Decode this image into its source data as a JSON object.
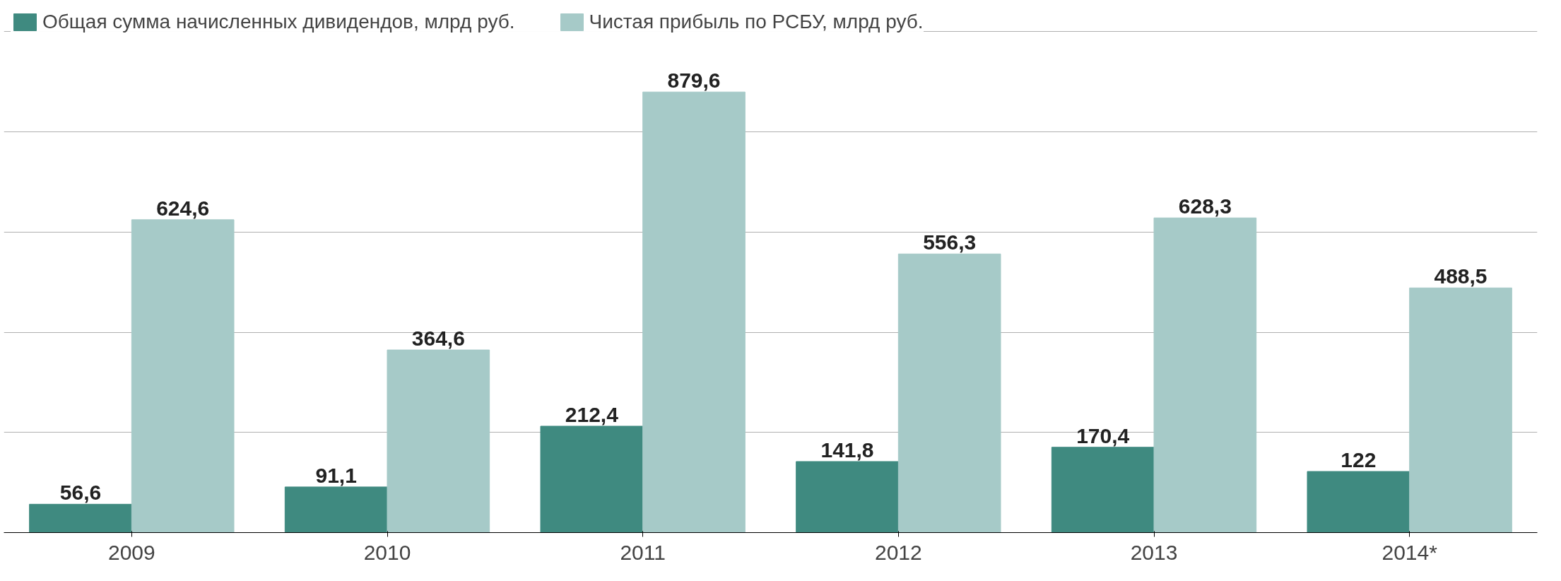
{
  "chart_data": {
    "type": "bar",
    "categories": [
      "2009",
      "2010",
      "2011",
      "2012",
      "2013",
      "2014*"
    ],
    "series": [
      {
        "name": "Общая сумма начисленных дивидендов, млрд руб.",
        "color": "#3f8a80",
        "values": [
          56.6,
          91.1,
          212.4,
          141.8,
          170.4,
          122
        ],
        "value_labels": [
          "56,6",
          "91,1",
          "212,4",
          "141,8",
          "170,4",
          "122"
        ]
      },
      {
        "name": "Чистая прибыль по РСБУ, млрд руб.",
        "color": "#a6cac8",
        "values": [
          624.6,
          364.6,
          879.6,
          556.3,
          628.3,
          488.5
        ],
        "value_labels": [
          "624,6",
          "364,6",
          "879,6",
          "556,3",
          "628,3",
          "488,5"
        ]
      }
    ],
    "tick_labels": "x",
    "grid": "y",
    "legend": "top left"
  }
}
